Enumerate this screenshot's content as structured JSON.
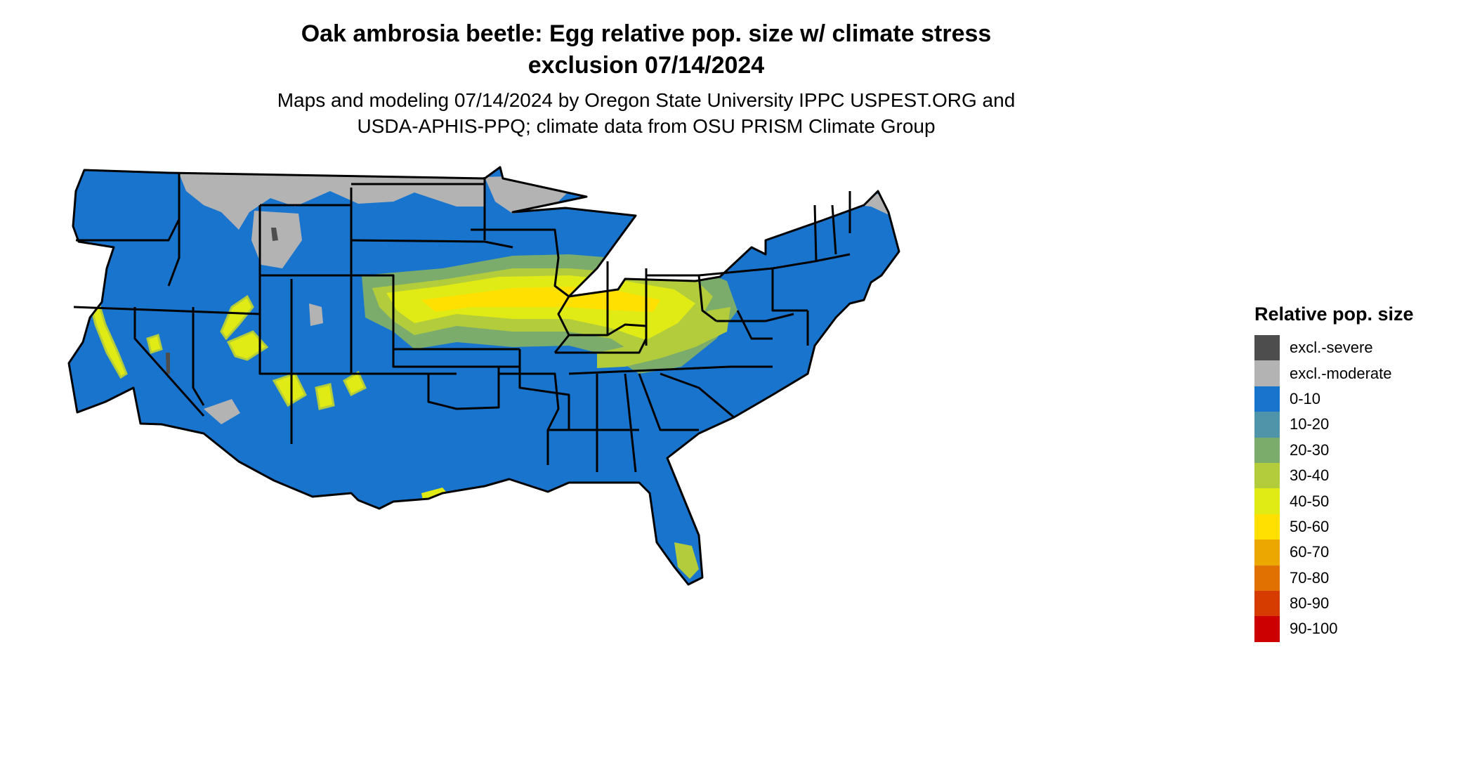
{
  "title": {
    "line1": "Oak ambrosia beetle: Egg relative pop. size w/ climate stress",
    "line2": "exclusion 07/14/2024"
  },
  "subtitle": {
    "line1": "Maps and modeling 07/14/2024 by Oregon State University IPPC USPEST.ORG and",
    "line2": "USDA-APHIS-PPQ; climate data from OSU PRISM Climate Group"
  },
  "legend": {
    "title": "Relative pop. size",
    "items": [
      {
        "label": "excl.-severe",
        "color": "#4d4d4d"
      },
      {
        "label": "excl.-moderate",
        "color": "#b3b3b3"
      },
      {
        "label": "0-10",
        "color": "#1874cd"
      },
      {
        "label": "10-20",
        "color": "#4f94a8"
      },
      {
        "label": "20-30",
        "color": "#7cac6c"
      },
      {
        "label": "30-40",
        "color": "#b2cc3c"
      },
      {
        "label": "40-50",
        "color": "#e0ea14"
      },
      {
        "label": "50-60",
        "color": "#ffe000"
      },
      {
        "label": "60-70",
        "color": "#eda800"
      },
      {
        "label": "70-80",
        "color": "#e17100"
      },
      {
        "label": "80-90",
        "color": "#d63b00"
      },
      {
        "label": "90-100",
        "color": "#cd0000"
      }
    ]
  }
}
